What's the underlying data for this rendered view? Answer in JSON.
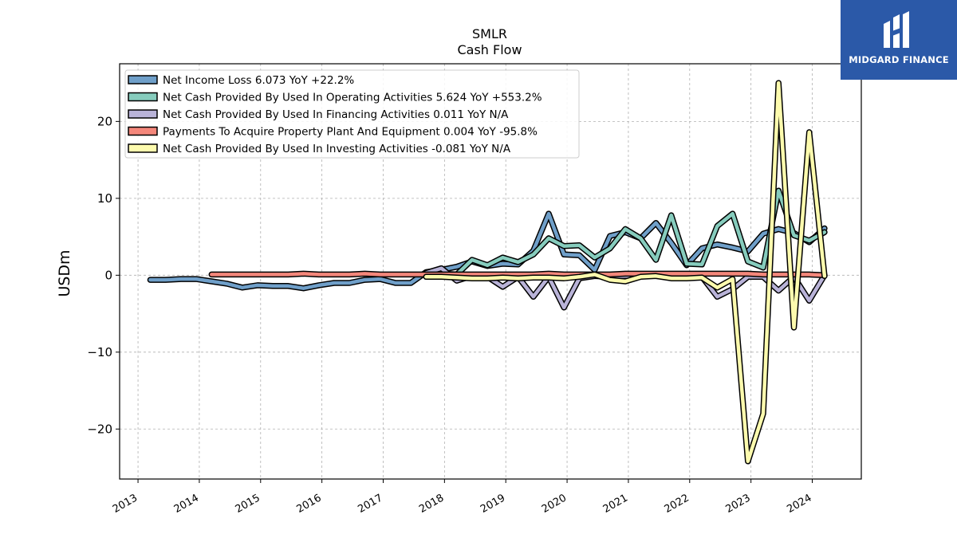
{
  "chart_data": {
    "type": "line",
    "title": "SMLR",
    "subtitle": "Cash Flow",
    "xlabel": "",
    "ylabel": "USDm",
    "xlim": [
      2012.7,
      2024.8
    ],
    "ylim": [
      -26.5,
      27.5
    ],
    "yticks": [
      -20,
      -10,
      0,
      10,
      20
    ],
    "yticklabels": [
      "−20",
      "−10",
      "0",
      "10",
      "20"
    ],
    "xticks": [
      2013,
      2014,
      2015,
      2016,
      2017,
      2018,
      2019,
      2020,
      2021,
      2022,
      2023,
      2024
    ],
    "xticklabels": [
      "2013",
      "2014",
      "2015",
      "2016",
      "2017",
      "2018",
      "2019",
      "2020",
      "2021",
      "2022",
      "2023",
      "2024"
    ],
    "grid": true,
    "legend_position": "top-left",
    "series": [
      {
        "name": "Net Income Loss  6.073 YoY +22.2%",
        "color": "#6f9fc9",
        "x": [
          2013.2,
          2013.45,
          2013.7,
          2013.95,
          2014.2,
          2014.45,
          2014.7,
          2014.95,
          2015.2,
          2015.45,
          2015.7,
          2015.95,
          2016.2,
          2016.45,
          2016.7,
          2016.95,
          2017.2,
          2017.45,
          2017.7,
          2017.95,
          2018.2,
          2018.45,
          2018.7,
          2018.95,
          2019.2,
          2019.45,
          2019.7,
          2019.95,
          2020.2,
          2020.45,
          2020.7,
          2020.95,
          2021.2,
          2021.45,
          2021.7,
          2021.95,
          2022.2,
          2022.45,
          2022.7,
          2022.95,
          2023.2,
          2023.45,
          2023.7,
          2023.95,
          2024.2
        ],
        "y": [
          -0.6,
          -0.6,
          -0.5,
          -0.5,
          -0.8,
          -1.1,
          -1.6,
          -1.3,
          -1.4,
          -1.4,
          -1.7,
          -1.3,
          -1.0,
          -1.0,
          -0.6,
          -0.5,
          -1.0,
          -1.0,
          0.4,
          0.7,
          1.1,
          1.8,
          1.2,
          1.5,
          1.4,
          3.2,
          8.0,
          2.7,
          2.6,
          0.7,
          5.1,
          5.6,
          4.8,
          6.8,
          4.2,
          1.3,
          3.5,
          4.0,
          3.6,
          3.1,
          5.4,
          6.0,
          5.5,
          4.3,
          6.1
        ]
      },
      {
        "name": "Net Cash Provided By Used In Operating Activities  5.624 YoY +553.2%",
        "color": "#86ccbd",
        "x": [
          2017.7,
          2017.95,
          2018.2,
          2018.45,
          2018.7,
          2018.95,
          2019.2,
          2019.45,
          2019.7,
          2019.95,
          2020.2,
          2020.45,
          2020.7,
          2020.95,
          2021.2,
          2021.45,
          2021.7,
          2021.95,
          2022.2,
          2022.45,
          2022.7,
          2022.95,
          2023.2,
          2023.45,
          2023.7,
          2023.95,
          2024.2
        ],
        "y": [
          0.3,
          0.2,
          0.1,
          2.0,
          1.3,
          2.3,
          1.7,
          2.7,
          4.8,
          3.8,
          3.9,
          2.3,
          3.5,
          6.0,
          4.8,
          2.0,
          7.8,
          1.5,
          1.4,
          6.4,
          8.0,
          1.8,
          1.0,
          11.0,
          5.2,
          4.5,
          5.6
        ]
      },
      {
        "name": "Net Cash Provided By Used In Financing Activities  0.011 YoY N/A",
        "color": "#b9b3d8",
        "x": [
          2017.7,
          2017.95,
          2018.2,
          2018.45,
          2018.7,
          2018.95,
          2019.2,
          2019.45,
          2019.7,
          2019.95,
          2020.2,
          2020.45,
          2020.7,
          2020.95,
          2021.2,
          2021.45,
          2021.7,
          2021.95,
          2022.2,
          2022.45,
          2022.7,
          2022.95,
          2023.2,
          2023.45,
          2023.7,
          2023.95,
          2024.2
        ],
        "y": [
          0.3,
          0.9,
          -0.7,
          -0.1,
          -0.2,
          -1.5,
          -0.2,
          -2.8,
          -0.2,
          -4.2,
          -0.4,
          -0.1,
          -0.2,
          -0.1,
          -0.1,
          -0.1,
          -0.2,
          -0.3,
          -0.2,
          -2.8,
          -1.8,
          -0.2,
          -0.2,
          -2.0,
          -0.2,
          -3.3,
          0.0
        ]
      },
      {
        "name": "Payments To Acquire Property Plant And Equipment  0.004 YoY -95.8%",
        "color": "#f4877b",
        "x": [
          2014.2,
          2014.45,
          2014.7,
          2014.95,
          2015.2,
          2015.45,
          2015.7,
          2015.95,
          2016.2,
          2016.45,
          2016.7,
          2016.95,
          2017.2,
          2017.45,
          2017.7,
          2017.95,
          2018.2,
          2018.45,
          2018.7,
          2018.95,
          2019.2,
          2019.45,
          2019.7,
          2019.95,
          2020.2,
          2020.45,
          2020.7,
          2020.95,
          2021.2,
          2021.45,
          2021.7,
          2021.95,
          2022.2,
          2022.45,
          2022.7,
          2022.95,
          2023.2,
          2023.45,
          2023.7,
          2023.95,
          2024.2
        ],
        "y": [
          0.1,
          0.1,
          0.1,
          0.1,
          0.1,
          0.1,
          0.2,
          0.1,
          0.1,
          0.1,
          0.2,
          0.1,
          0.1,
          0.1,
          0.1,
          0.1,
          0.1,
          0.1,
          0.1,
          0.1,
          0.1,
          0.1,
          0.2,
          0.1,
          0.1,
          0.1,
          0.1,
          0.2,
          0.2,
          0.2,
          0.2,
          0.2,
          0.2,
          0.2,
          0.2,
          0.2,
          0.1,
          0.1,
          0.1,
          0.1,
          0.0
        ]
      },
      {
        "name": "Net Cash Provided By Used In Investing Activities  -0.081 YoY N/A",
        "color": "#fdfbae",
        "x": [
          2017.7,
          2017.95,
          2018.2,
          2018.45,
          2018.7,
          2018.95,
          2019.2,
          2019.45,
          2019.7,
          2019.95,
          2020.2,
          2020.45,
          2020.7,
          2020.95,
          2021.2,
          2021.45,
          2021.7,
          2021.95,
          2022.2,
          2022.45,
          2022.7,
          2022.95,
          2023.2,
          2023.45,
          2023.7,
          2023.95,
          2024.2
        ],
        "y": [
          -0.2,
          -0.2,
          -0.3,
          -0.4,
          -0.4,
          -0.3,
          -0.4,
          -0.3,
          -0.3,
          -0.4,
          -0.2,
          0.1,
          -0.6,
          -0.8,
          -0.2,
          -0.1,
          -0.4,
          -0.4,
          -0.3,
          -1.6,
          -0.5,
          -24.2,
          -18.0,
          25.0,
          -6.8,
          18.6,
          -0.1
        ]
      }
    ]
  },
  "logo": {
    "text": "MIDGARD FINANCE",
    "background": "#2b59a8"
  }
}
